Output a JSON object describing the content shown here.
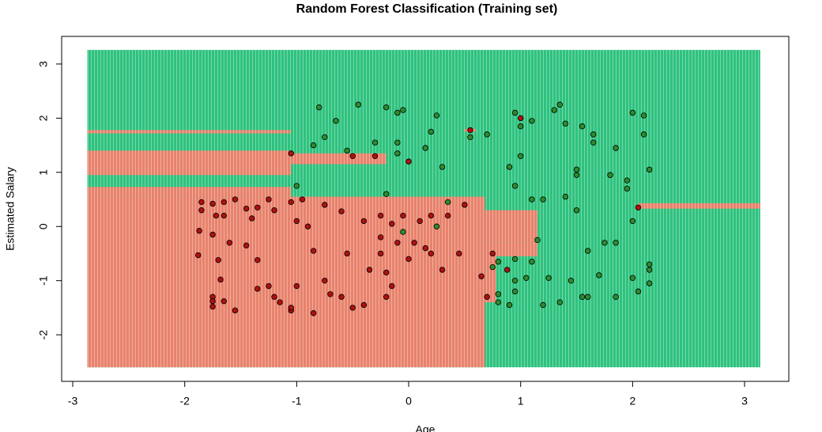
{
  "chart_data": {
    "type": "scatter",
    "title": "Random Forest Classification (Training set)",
    "x_label": "Age",
    "y_label": "Estimated Salary",
    "xlim": [
      -3.099,
      3.395
    ],
    "ylim": [
      -2.86,
      3.51
    ],
    "xticks": [
      -3,
      -2,
      -1,
      0,
      1,
      2,
      3
    ],
    "yticks": [
      -2,
      -1,
      0,
      1,
      2,
      3
    ],
    "regions": [
      {
        "color": "#2ec27e",
        "x": [
          -2.87,
          3.14
        ],
        "y": [
          -2.6,
          3.26
        ]
      },
      {
        "color": "#e8826c",
        "x": [
          -2.87,
          0.68
        ],
        "y": [
          -2.6,
          0.55
        ]
      },
      {
        "color": "#e8826c",
        "x": [
          -2.87,
          -1.05
        ],
        "y": [
          0.55,
          0.73
        ]
      },
      {
        "color": "#e8826c",
        "x": [
          -2.87,
          -1.05
        ],
        "y": [
          0.95,
          1.4
        ]
      },
      {
        "color": "#e8826c",
        "x": [
          -1.05,
          -0.2
        ],
        "y": [
          1.15,
          1.35
        ]
      },
      {
        "color": "#e8826c",
        "x": [
          -2.87,
          -1.05
        ],
        "y": [
          1.72,
          1.78
        ]
      },
      {
        "color": "#e8826c",
        "x": [
          0.5,
          0.6
        ],
        "y": [
          1.75,
          1.8
        ]
      },
      {
        "color": "#e8826c",
        "x": [
          0.68,
          1.15
        ],
        "y": [
          -0.3,
          0.3
        ]
      },
      {
        "color": "#e8826c",
        "x": [
          0.68,
          0.78
        ],
        "y": [
          -1.4,
          -0.3
        ]
      },
      {
        "color": "#e8826c",
        "x": [
          0.78,
          1.15
        ],
        "y": [
          -0.55,
          -0.3
        ]
      },
      {
        "color": "#e8826c",
        "x": [
          2.05,
          3.14
        ],
        "y": [
          0.33,
          0.43
        ]
      }
    ],
    "series": [
      {
        "color": "#b01010",
        "x": [
          -1.85,
          -1.85,
          -1.87,
          -1.88,
          -1.75,
          -1.72,
          -1.75,
          -1.65,
          -1.65,
          -1.6,
          -1.7,
          -1.68,
          -1.75,
          -1.75,
          -1.75,
          -1.65,
          -1.55,
          -1.55,
          -1.45,
          -1.4,
          -1.35,
          -1.45,
          -1.35,
          -1.25,
          -1.2,
          -1.25,
          -1.2,
          -1.15,
          -1.05,
          -1.05,
          -1.0,
          -1.05,
          -1.0,
          -0.95,
          -0.9,
          -0.85,
          -0.75,
          -0.7,
          -0.75,
          -0.6,
          -0.55,
          -0.5,
          -0.4,
          -0.35,
          -0.25,
          -0.25,
          -0.25,
          -0.2,
          -0.2,
          -0.15,
          -0.1,
          -0.05,
          0.0,
          0.05,
          0.1,
          0.15,
          0.2,
          0.3,
          0.35,
          0.45,
          0.5,
          -1.05,
          -0.5,
          -0.3,
          0.0,
          0.55,
          1.0,
          2.05,
          0.65,
          0.7,
          0.88,
          0.75,
          -0.85,
          -0.6,
          -1.35,
          -0.4,
          0.2,
          -0.15
        ],
        "values": [
          0.45,
          0.3,
          -0.08,
          -0.53,
          0.42,
          0.2,
          -0.15,
          0.45,
          0.2,
          -0.3,
          -0.62,
          -0.98,
          -1.3,
          -1.38,
          -1.48,
          -1.38,
          -1.55,
          0.5,
          0.33,
          0.15,
          0.35,
          -0.35,
          -0.62,
          0.5,
          0.3,
          -1.1,
          -1.3,
          -1.4,
          -1.55,
          -1.5,
          -1.1,
          0.45,
          0.1,
          0.5,
          0.0,
          -0.45,
          -1.0,
          -1.25,
          0.4,
          0.28,
          -0.5,
          -1.5,
          0.1,
          -0.8,
          0.2,
          -0.2,
          -0.5,
          -0.85,
          -1.3,
          0.05,
          -0.3,
          0.2,
          -0.6,
          -0.3,
          0.1,
          -0.4,
          0.2,
          -0.8,
          0.2,
          -0.5,
          0.4,
          1.35,
          1.3,
          1.3,
          1.2,
          1.78,
          2.0,
          0.35,
          -0.92,
          -1.3,
          -0.8,
          -0.5,
          -1.6,
          -1.3,
          -1.15,
          -1.45,
          -0.5,
          -1.1
        ]
      },
      {
        "color": "#2e8b2e",
        "x": [
          -0.8,
          -0.45,
          -0.2,
          -0.1,
          -0.05,
          -0.65,
          -0.75,
          -0.55,
          -0.3,
          -0.1,
          -0.1,
          0.15,
          0.2,
          0.25,
          0.55,
          0.7,
          0.95,
          1.0,
          1.1,
          1.3,
          1.35,
          1.4,
          1.55,
          1.65,
          1.65,
          1.85,
          2.0,
          2.1,
          2.1,
          2.15,
          1.5,
          1.5,
          1.8,
          1.95,
          1.95,
          1.4,
          1.1,
          1.2,
          0.95,
          0.9,
          1.0,
          0.3,
          0.35,
          -0.2,
          -1.0,
          -0.85,
          2.0,
          1.75,
          1.85,
          2.15,
          2.15,
          2.15,
          2.0,
          2.05,
          1.85,
          1.7,
          1.55,
          1.35,
          1.2,
          1.45,
          1.25,
          1.05,
          0.95,
          0.9,
          0.8,
          0.8,
          0.95,
          0.75,
          0.8,
          0.95,
          1.1,
          1.15,
          1.5,
          1.6,
          1.6,
          -0.05,
          0.25
        ],
        "values": [
          2.2,
          2.25,
          2.2,
          2.1,
          2.15,
          1.95,
          1.65,
          1.4,
          1.55,
          1.55,
          1.35,
          1.45,
          1.75,
          2.05,
          1.65,
          1.7,
          2.1,
          1.85,
          1.95,
          2.15,
          2.25,
          1.9,
          1.85,
          1.7,
          1.55,
          1.45,
          2.1,
          2.05,
          1.7,
          1.05,
          1.05,
          0.95,
          0.95,
          0.85,
          0.7,
          0.55,
          0.5,
          0.5,
          0.75,
          1.1,
          1.3,
          1.1,
          0.45,
          0.6,
          0.75,
          1.5,
          0.1,
          -0.3,
          -0.3,
          -0.7,
          -0.8,
          -1.05,
          -0.95,
          -1.2,
          -1.3,
          -0.9,
          -1.3,
          -1.4,
          -1.45,
          -1.0,
          -0.95,
          -0.95,
          -1.0,
          -1.45,
          -1.4,
          -1.25,
          -1.2,
          -0.75,
          -0.65,
          -0.6,
          -0.65,
          -0.25,
          0.3,
          -0.45,
          -1.3,
          -0.1,
          0.0
        ]
      }
    ]
  }
}
